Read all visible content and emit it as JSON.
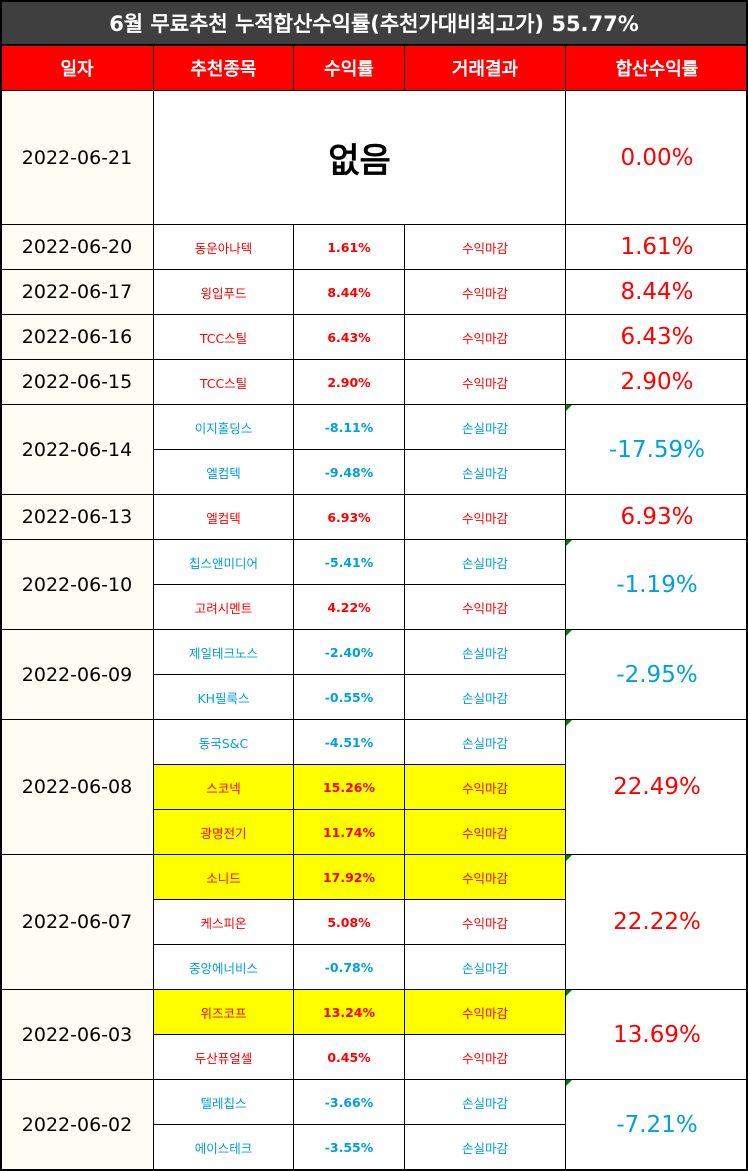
{
  "title": "6월 무료추천 누적합산수익률(추천가대비최고가) 55.77%",
  "colors": {
    "profit": "#ff0000",
    "loss": "#00a0dc",
    "highlight": "#ffff00",
    "header": "#ff0000",
    "title_bg": "#3f3f3f"
  },
  "headers": [
    "일자",
    "추천종목",
    "수익률",
    "거래결과",
    "합산수익률"
  ],
  "none_label": "없음",
  "groups": [
    {
      "date": "2022-06-21",
      "cum": "0.00%",
      "cum_sign": "pos",
      "none": true,
      "rows": []
    },
    {
      "date": "2022-06-20",
      "cum": "1.61%",
      "cum_sign": "pos",
      "rows": [
        {
          "stock": "동운아나텍",
          "rate": "1.61%",
          "result": "수익마감",
          "sign": "pos",
          "hl": false
        }
      ]
    },
    {
      "date": "2022-06-17",
      "cum": "8.44%",
      "cum_sign": "pos",
      "rows": [
        {
          "stock": "윙입푸드",
          "rate": "8.44%",
          "result": "수익마감",
          "sign": "pos",
          "hl": false
        }
      ]
    },
    {
      "date": "2022-06-16",
      "cum": "6.43%",
      "cum_sign": "pos",
      "rows": [
        {
          "stock": "TCC스틸",
          "rate": "6.43%",
          "result": "수익마감",
          "sign": "pos",
          "hl": false
        }
      ]
    },
    {
      "date": "2022-06-15",
      "cum": "2.90%",
      "cum_sign": "pos",
      "rows": [
        {
          "stock": "TCC스틸",
          "rate": "2.90%",
          "result": "수익마감",
          "sign": "pos",
          "hl": false
        }
      ]
    },
    {
      "date": "2022-06-14",
      "cum": "-17.59%",
      "cum_sign": "neg",
      "rows": [
        {
          "stock": "이지홀딩스",
          "rate": "-8.11%",
          "result": "손실마감",
          "sign": "neg",
          "hl": false
        },
        {
          "stock": "엘컴텍",
          "rate": "-9.48%",
          "result": "손실마감",
          "sign": "neg",
          "hl": false
        }
      ]
    },
    {
      "date": "2022-06-13",
      "cum": "6.93%",
      "cum_sign": "pos",
      "rows": [
        {
          "stock": "엘컴텍",
          "rate": "6.93%",
          "result": "수익마감",
          "sign": "pos",
          "hl": false
        }
      ]
    },
    {
      "date": "2022-06-10",
      "cum": "-1.19%",
      "cum_sign": "neg",
      "rows": [
        {
          "stock": "칩스앤미디어",
          "rate": "-5.41%",
          "result": "손실마감",
          "sign": "neg",
          "hl": false
        },
        {
          "stock": "고려시멘트",
          "rate": "4.22%",
          "result": "수익마감",
          "sign": "pos",
          "hl": false
        }
      ]
    },
    {
      "date": "2022-06-09",
      "cum": "-2.95%",
      "cum_sign": "neg",
      "rows": [
        {
          "stock": "제일테크노스",
          "rate": "-2.40%",
          "result": "손실마감",
          "sign": "neg",
          "hl": false
        },
        {
          "stock": "KH필룩스",
          "rate": "-0.55%",
          "result": "손실마감",
          "sign": "neg",
          "hl": false
        }
      ]
    },
    {
      "date": "2022-06-08",
      "cum": "22.49%",
      "cum_sign": "pos",
      "rows": [
        {
          "stock": "동국S&C",
          "rate": "-4.51%",
          "result": "손실마감",
          "sign": "neg",
          "hl": false
        },
        {
          "stock": "스코넥",
          "rate": "15.26%",
          "result": "수익마감",
          "sign": "pos",
          "hl": true
        },
        {
          "stock": "광명전기",
          "rate": "11.74%",
          "result": "수익마감",
          "sign": "pos",
          "hl": true
        }
      ]
    },
    {
      "date": "2022-06-07",
      "cum": "22.22%",
      "cum_sign": "pos",
      "rows": [
        {
          "stock": "소니드",
          "rate": "17.92%",
          "result": "수익마감",
          "sign": "pos",
          "hl": true
        },
        {
          "stock": "케스피온",
          "rate": "5.08%",
          "result": "수익마감",
          "sign": "pos",
          "hl": false
        },
        {
          "stock": "중앙에너비스",
          "rate": "-0.78%",
          "result": "손실마감",
          "sign": "neg",
          "hl": false
        }
      ]
    },
    {
      "date": "2022-06-03",
      "cum": "13.69%",
      "cum_sign": "pos",
      "rows": [
        {
          "stock": "위즈코프",
          "rate": "13.24%",
          "result": "수익마감",
          "sign": "pos",
          "hl": true
        },
        {
          "stock": "두산퓨얼셀",
          "rate": "0.45%",
          "result": "수익마감",
          "sign": "pos",
          "hl": false
        }
      ]
    },
    {
      "date": "2022-06-02",
      "cum": "-7.21%",
      "cum_sign": "neg",
      "rows": [
        {
          "stock": "텔레칩스",
          "rate": "-3.66%",
          "result": "손실마감",
          "sign": "neg",
          "hl": false
        },
        {
          "stock": "에이스테크",
          "rate": "-3.55%",
          "result": "손실마감",
          "sign": "neg",
          "hl": false
        }
      ]
    }
  ]
}
